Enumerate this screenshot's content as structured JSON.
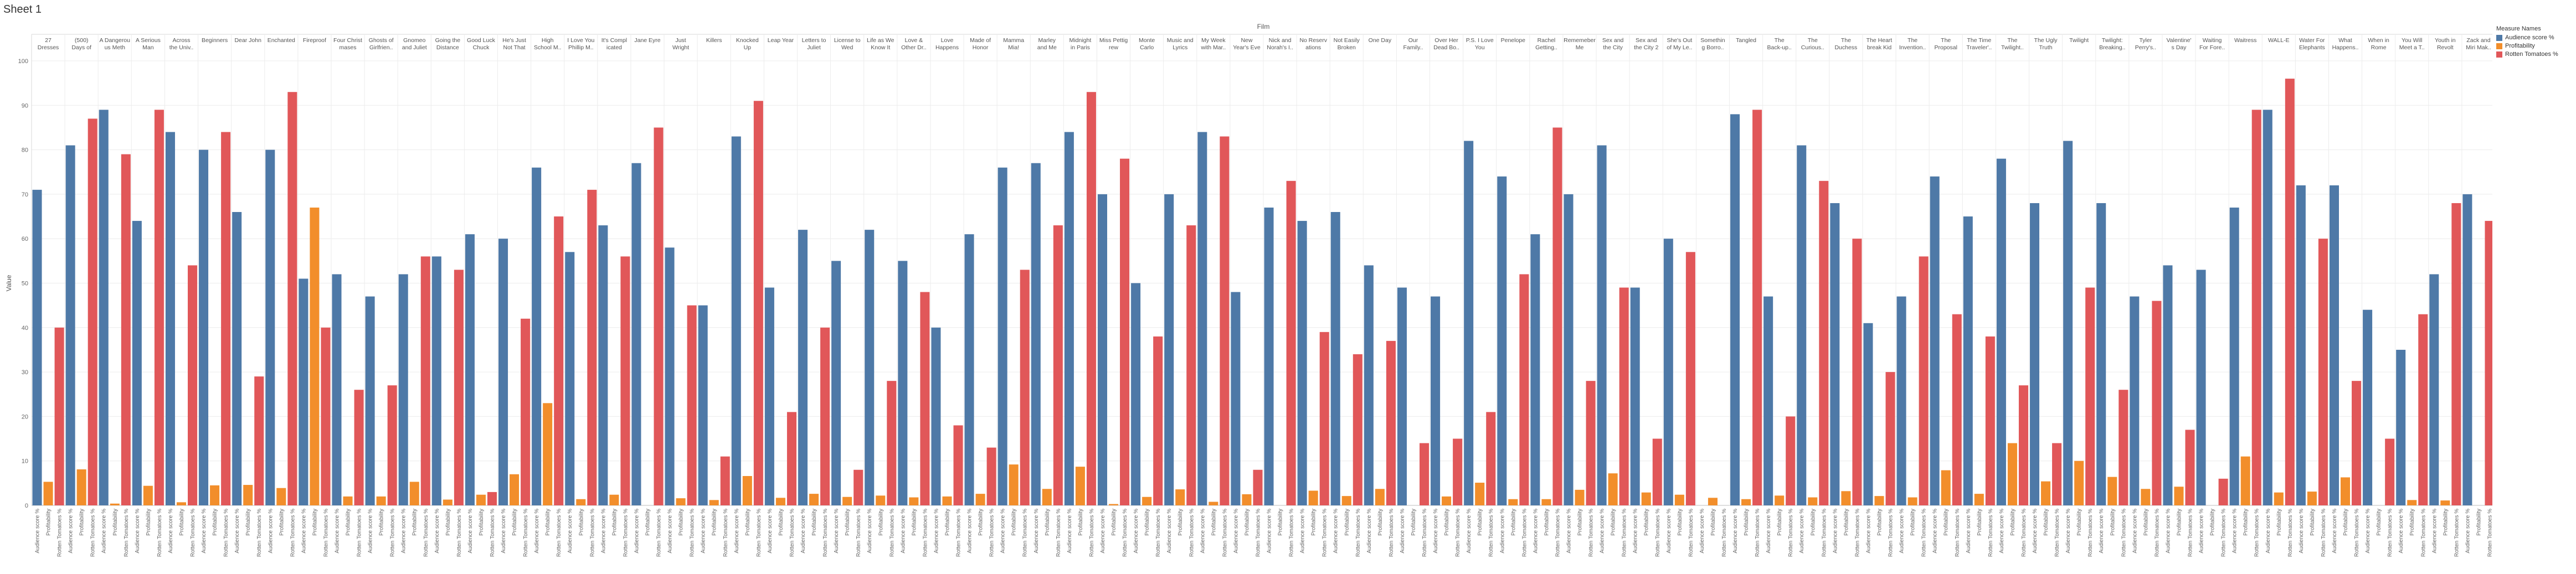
{
  "sheet": {
    "title": "Sheet 1"
  },
  "chart_data": {
    "type": "bar",
    "column_header": "Film",
    "ylabel": "Value",
    "ylim": [
      0,
      100
    ],
    "yticks": [
      0,
      10,
      20,
      30,
      40,
      50,
      60,
      70,
      80,
      90,
      100
    ],
    "grid": true,
    "legend_title": "Measure Names",
    "legend_position": "top-right",
    "measures": [
      {
        "key": "aud",
        "name": "Audience score %",
        "color": "#4e79a7"
      },
      {
        "key": "prof",
        "name": "Profitability",
        "color": "#f28e2b"
      },
      {
        "key": "rt",
        "name": "Rotten Tomatoes %",
        "color": "#e15759"
      }
    ],
    "films": [
      {
        "label": [
          "27",
          "Dresses"
        ],
        "aud": 71,
        "prof": 5.3,
        "rt": 40
      },
      {
        "label": [
          "(500)",
          "Days of"
        ],
        "aud": 81,
        "prof": 8.1,
        "rt": 87
      },
      {
        "label": [
          "A Dangerou",
          "us Meth"
        ],
        "aud": 89,
        "prof": 0.4,
        "rt": 79
      },
      {
        "label": [
          "A Serious",
          "Man"
        ],
        "aud": 64,
        "prof": 4.4,
        "rt": 89
      },
      {
        "label": [
          "Across",
          "the Univ.."
        ],
        "aud": 84,
        "prof": 0.7,
        "rt": 54
      },
      {
        "label": [
          "Beginners"
        ],
        "aud": 80,
        "prof": 4.5,
        "rt": 84
      },
      {
        "label": [
          "Dear John"
        ],
        "aud": 66,
        "prof": 4.6,
        "rt": 29
      },
      {
        "label": [
          "Enchanted"
        ],
        "aud": 80,
        "prof": 3.9,
        "rt": 93
      },
      {
        "label": [
          "Fireproof"
        ],
        "aud": 51,
        "prof": 67,
        "rt": 40
      },
      {
        "label": [
          "Four Christ",
          "mases"
        ],
        "aud": 52,
        "prof": 2.0,
        "rt": 26
      },
      {
        "label": [
          "Ghosts of",
          "Girlfrien.."
        ],
        "aud": 47,
        "prof": 2.0,
        "rt": 27
      },
      {
        "label": [
          "Gnomeo",
          "and Juliet"
        ],
        "aud": 52,
        "prof": 5.3,
        "rt": 56
      },
      {
        "label": [
          "Going the",
          "Distance"
        ],
        "aud": 56,
        "prof": 1.3,
        "rt": 53
      },
      {
        "label": [
          "Good Luck",
          "Chuck"
        ],
        "aud": 61,
        "prof": 2.4,
        "rt": 3
      },
      {
        "label": [
          "He's Just",
          "Not That"
        ],
        "aud": 60,
        "prof": 7.0,
        "rt": 42
      },
      {
        "label": [
          "High",
          "School M.."
        ],
        "aud": 76,
        "prof": 23,
        "rt": 65
      },
      {
        "label": [
          "I Love You",
          "Phillip M.."
        ],
        "aud": 57,
        "prof": 1.4,
        "rt": 71
      },
      {
        "label": [
          "It's Compl",
          "icated"
        ],
        "aud": 63,
        "prof": 2.4,
        "rt": 56
      },
      {
        "label": [
          "Jane Eyre"
        ],
        "aud": 77,
        "prof": 0.0,
        "rt": 85
      },
      {
        "label": [
          "Just",
          "Wright"
        ],
        "aud": 58,
        "prof": 1.6,
        "rt": 45
      },
      {
        "label": [
          "Killers"
        ],
        "aud": 45,
        "prof": 1.2,
        "rt": 11
      },
      {
        "label": [
          "Knocked",
          "Up"
        ],
        "aud": 83,
        "prof": 6.6,
        "rt": 91
      },
      {
        "label": [
          "Leap Year"
        ],
        "aud": 49,
        "prof": 1.7,
        "rt": 21
      },
      {
        "label": [
          "Letters to",
          "Juliet"
        ],
        "aud": 62,
        "prof": 2.6,
        "rt": 40
      },
      {
        "label": [
          "License to",
          "Wed"
        ],
        "aud": 55,
        "prof": 1.9,
        "rt": 8
      },
      {
        "label": [
          "Life as We",
          "Know It"
        ],
        "aud": 62,
        "prof": 2.2,
        "rt": 28
      },
      {
        "label": [
          "Love &",
          "Other Dr.."
        ],
        "aud": 55,
        "prof": 1.8,
        "rt": 48
      },
      {
        "label": [
          "Love",
          "Happens"
        ],
        "aud": 40,
        "prof": 2.0,
        "rt": 18
      },
      {
        "label": [
          "Made of",
          "Honor"
        ],
        "aud": 61,
        "prof": 2.6,
        "rt": 13
      },
      {
        "label": [
          "Mamma",
          "Mia!"
        ],
        "aud": 76,
        "prof": 9.2,
        "rt": 53
      },
      {
        "label": [
          "Marley",
          "and Me"
        ],
        "aud": 77,
        "prof": 3.7,
        "rt": 63
      },
      {
        "label": [
          "Midnight",
          "in Paris"
        ],
        "aud": 84,
        "prof": 8.7,
        "rt": 93
      },
      {
        "label": [
          "Miss Pettig",
          "rew"
        ],
        "aud": 70,
        "prof": 0.3,
        "rt": 78
      },
      {
        "label": [
          "Monte",
          "Carlo"
        ],
        "aud": 50,
        "prof": 1.9,
        "rt": 38
      },
      {
        "label": [
          "Music and",
          "Lyrics"
        ],
        "aud": 70,
        "prof": 3.6,
        "rt": 63
      },
      {
        "label": [
          "My Week",
          "with Mar.."
        ],
        "aud": 84,
        "prof": 0.8,
        "rt": 83
      },
      {
        "label": [
          "New",
          "Year's Eve"
        ],
        "aud": 48,
        "prof": 2.5,
        "rt": 8
      },
      {
        "label": [
          "Nick and",
          "Norah's I.."
        ],
        "aud": 67,
        "prof": 0.0,
        "rt": 73
      },
      {
        "label": [
          "No Reserv",
          "ations"
        ],
        "aud": 64,
        "prof": 3.3,
        "rt": 39
      },
      {
        "label": [
          "Not Easily",
          "Broken"
        ],
        "aud": 66,
        "prof": 2.1,
        "rt": 34
      },
      {
        "label": [
          "One Day"
        ],
        "aud": 54,
        "prof": 3.7,
        "rt": 37
      },
      {
        "label": [
          "Our",
          "Family.."
        ],
        "aud": 49,
        "prof": 0.0,
        "rt": 14
      },
      {
        "label": [
          "Over Her",
          "Dead Bo.."
        ],
        "aud": 47,
        "prof": 2.0,
        "rt": 15
      },
      {
        "label": [
          "P.S. I Love",
          "You"
        ],
        "aud": 82,
        "prof": 5.1,
        "rt": 21
      },
      {
        "label": [
          "Penelope"
        ],
        "aud": 74,
        "prof": 1.4,
        "rt": 52
      },
      {
        "label": [
          "Rachel",
          "Getting.."
        ],
        "aud": 61,
        "prof": 1.4,
        "rt": 85
      },
      {
        "label": [
          "Rememeber",
          "Me"
        ],
        "aud": 70,
        "prof": 3.5,
        "rt": 28
      },
      {
        "label": [
          "Sex and",
          "the City"
        ],
        "aud": 81,
        "prof": 7.2,
        "rt": 49
      },
      {
        "label": [
          "Sex and",
          "the City 2"
        ],
        "aud": 49,
        "prof": 2.9,
        "rt": 15
      },
      {
        "label": [
          "She's Out",
          "of My Le.."
        ],
        "aud": 60,
        "prof": 2.4,
        "rt": 57
      },
      {
        "label": [
          "Somethin",
          "g Borro.."
        ],
        "aud": 0,
        "prof": 1.7,
        "rt": 0
      },
      {
        "label": [
          "Tangled"
        ],
        "aud": 88,
        "prof": 1.4,
        "rt": 89
      },
      {
        "label": [
          "The",
          "Back-up.."
        ],
        "aud": 47,
        "prof": 2.2,
        "rt": 20
      },
      {
        "label": [
          "The",
          "Curious.."
        ],
        "aud": 81,
        "prof": 1.8,
        "rt": 73
      },
      {
        "label": [
          "The",
          "Duchess"
        ],
        "aud": 68,
        "prof": 3.2,
        "rt": 60
      },
      {
        "label": [
          "The Heart",
          "break Kid"
        ],
        "aud": 41,
        "prof": 2.1,
        "rt": 30
      },
      {
        "label": [
          "The",
          "Invention.."
        ],
        "aud": 47,
        "prof": 1.8,
        "rt": 56
      },
      {
        "label": [
          "The",
          "Proposal"
        ],
        "aud": 74,
        "prof": 7.9,
        "rt": 43
      },
      {
        "label": [
          "The Time",
          "Traveler'.."
        ],
        "aud": 65,
        "prof": 2.6,
        "rt": 38
      },
      {
        "label": [
          "The",
          "Twilight.."
        ],
        "aud": 78,
        "prof": 14,
        "rt": 27
      },
      {
        "label": [
          "The Ugly",
          "Truth"
        ],
        "aud": 68,
        "prof": 5.4,
        "rt": 14
      },
      {
        "label": [
          "Twilight"
        ],
        "aud": 82,
        "prof": 10,
        "rt": 49
      },
      {
        "label": [
          "Twilight:",
          "Breaking.."
        ],
        "aud": 68,
        "prof": 6.4,
        "rt": 26
      },
      {
        "label": [
          "Tyler",
          "Perry's.."
        ],
        "aud": 47,
        "prof": 3.7,
        "rt": 46
      },
      {
        "label": [
          "Valentine'",
          "s Day"
        ],
        "aud": 54,
        "prof": 4.2,
        "rt": 17
      },
      {
        "label": [
          "Waiting",
          "For Fore.."
        ],
        "aud": 53,
        "prof": 0.0,
        "rt": 6
      },
      {
        "label": [
          "Waitress"
        ],
        "aud": 67,
        "prof": 11,
        "rt": 89
      },
      {
        "label": [
          "WALL-E"
        ],
        "aud": 89,
        "prof": 2.9,
        "rt": 96
      },
      {
        "label": [
          "Water For",
          "Elephants"
        ],
        "aud": 72,
        "prof": 3.1,
        "rt": 60
      },
      {
        "label": [
          "What",
          "Happens.."
        ],
        "aud": 72,
        "prof": 6.3,
        "rt": 28
      },
      {
        "label": [
          "When in",
          "Rome"
        ],
        "aud": 44,
        "prof": 0.0,
        "rt": 15
      },
      {
        "label": [
          "You Will",
          "Meet a T.."
        ],
        "aud": 35,
        "prof": 1.2,
        "rt": 43
      },
      {
        "label": [
          "Youth in",
          "Revolt"
        ],
        "aud": 52,
        "prof": 1.1,
        "rt": 68
      },
      {
        "label": [
          "Zack and",
          "Miri Mak.."
        ],
        "aud": 70,
        "prof": 0.0,
        "rt": 64
      }
    ]
  }
}
